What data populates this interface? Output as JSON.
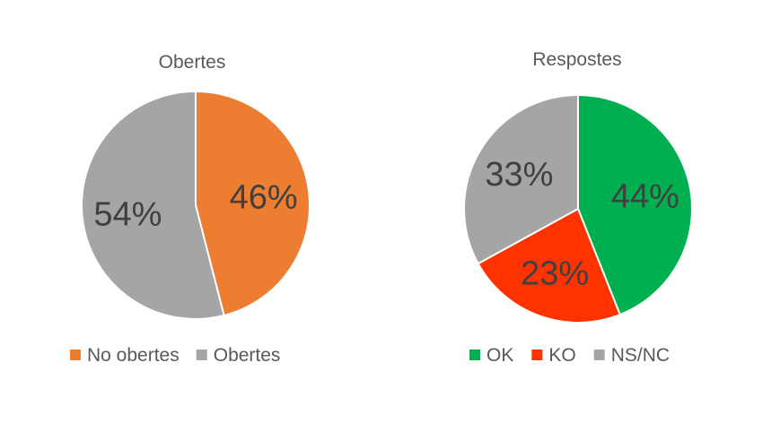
{
  "chart_data": [
    {
      "type": "pie",
      "title": "Obertes",
      "slices": [
        {
          "name": "No obertes",
          "value": 46,
          "label": "46%",
          "color": "#ED7D31"
        },
        {
          "name": "Obertes",
          "value": 54,
          "label": "54%",
          "color": "#A5A5A5"
        }
      ],
      "legend": "bottom"
    },
    {
      "type": "pie",
      "title": "Respostes",
      "slices": [
        {
          "name": "OK",
          "value": 44,
          "label": "44%",
          "color": "#00B050"
        },
        {
          "name": "KO",
          "value": 23,
          "label": "23%",
          "color": "#FF3300"
        },
        {
          "name": "NS/NC",
          "value": 33,
          "label": "33%",
          "color": "#A5A5A5"
        }
      ],
      "legend": "bottom"
    }
  ]
}
